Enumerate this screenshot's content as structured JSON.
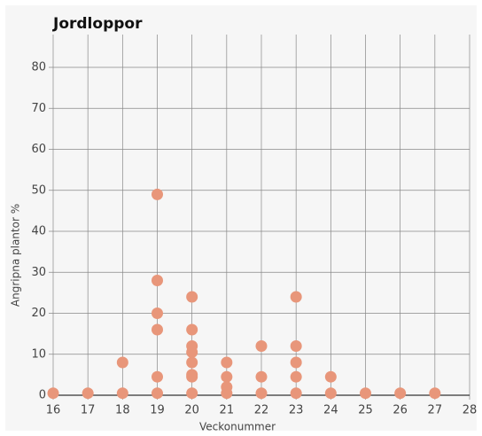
{
  "chart_data": {
    "type": "scatter",
    "title": "Jordloppor",
    "x_label": "Veckonummer",
    "y_label": "Angripna plantor %",
    "series": [
      {
        "name": null,
        "color": "#e8967a",
        "x": [
          16,
          17,
          18,
          18,
          19,
          19,
          19,
          19,
          19,
          19,
          20,
          20,
          20,
          20,
          20,
          20,
          20,
          20,
          21,
          21,
          21,
          21,
          22,
          22,
          22,
          23,
          23,
          23,
          23,
          23,
          24,
          24,
          25,
          26,
          27
        ],
        "values": [
          0.5,
          0.5,
          0.5,
          8,
          0.5,
          4.5,
          16,
          20,
          28,
          49,
          0.5,
          4.5,
          5,
          8,
          10.5,
          12,
          16,
          24,
          0.5,
          2,
          4.5,
          8,
          0.5,
          4.5,
          12,
          0.5,
          4.5,
          8,
          12,
          24,
          0.5,
          4.5,
          0.5,
          0.5,
          0.5
        ]
      }
    ],
    "xlim": [
      16,
      28
    ],
    "ylim": [
      0,
      88
    ],
    "xticks": [
      16,
      17,
      18,
      19,
      20,
      21,
      22,
      23,
      24,
      25,
      26,
      27,
      28
    ],
    "yticks": [
      0,
      10,
      20,
      30,
      40,
      50,
      60,
      70,
      80
    ],
    "grid": true
  }
}
